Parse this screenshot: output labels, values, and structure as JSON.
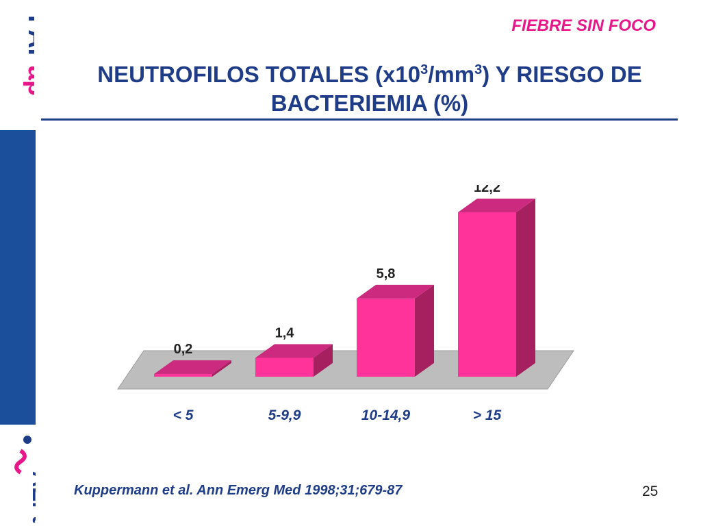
{
  "header": {
    "tag": "FIEBRE SIN FOCO",
    "title_pre": "NEUTROFILOS TOTALES (x10",
    "title_sup1": "3",
    "title_mid": "/mm",
    "title_sup2": "3",
    "title_post": ") Y RIESGO DE BACTERIEMIA (%)"
  },
  "sidebar": {
    "logo_text": "FAPap",
    "bottom_logo_text": "AEPap"
  },
  "chart_data": {
    "type": "bar",
    "categories": [
      "< 5",
      "5-9,9",
      "10-14,9",
      "> 15"
    ],
    "values": [
      0.2,
      1.4,
      5.8,
      12.2
    ],
    "value_labels": [
      "0,2",
      "1,4",
      "5,8",
      "12,2"
    ],
    "title": "",
    "xlabel": "",
    "ylabel": "",
    "ylim": [
      0,
      12.2
    ],
    "grid": false,
    "legend": "none"
  },
  "colors": {
    "bar_front": "#ff3399",
    "bar_top": "#cc2a7f",
    "bar_side": "#a6205f",
    "floor": "#bdbdbd",
    "title": "#1f3c88",
    "accent": "#e7178a"
  },
  "footer": {
    "citation": "Kuppermann et al. Ann Emerg Med 1998;31;679-87",
    "page_number": "25"
  }
}
